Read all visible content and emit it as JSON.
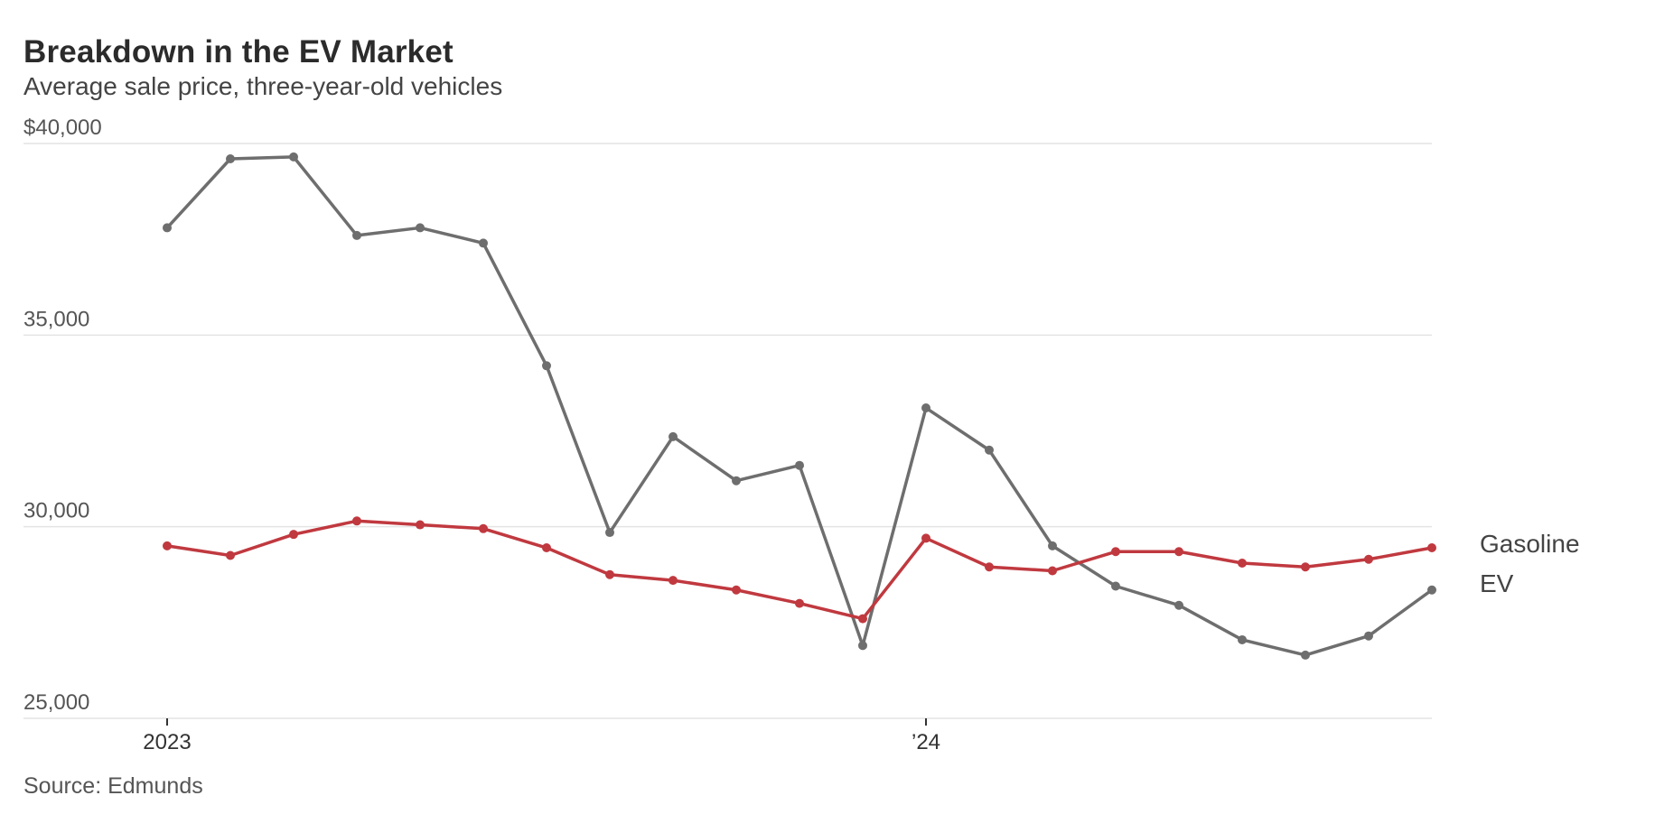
{
  "title": "Breakdown in the EV Market",
  "subtitle": "Average sale price, three-year-old vehicles",
  "source": "Source: Edmunds",
  "chart_data": {
    "type": "line",
    "title": "Breakdown in the EV Market",
    "subtitle": "Average sale price, three-year-old vehicles",
    "xlabel": "",
    "ylabel": "",
    "ylim": [
      25000,
      40000
    ],
    "yticks": [
      25000,
      30000,
      35000,
      40000
    ],
    "ytick_labels": [
      "25,000",
      "30,000",
      "35,000",
      "$40,000"
    ],
    "x": [
      "2023-01",
      "2023-02",
      "2023-03",
      "2023-04",
      "2023-05",
      "2023-06",
      "2023-07",
      "2023-08",
      "2023-09",
      "2023-10",
      "2023-11",
      "2023-12",
      "2024-01",
      "2024-02",
      "2024-03",
      "2024-04",
      "2024-05",
      "2024-06",
      "2024-07",
      "2024-08",
      "2024-09"
    ],
    "xtick_labels": [
      {
        "x": "2023-01",
        "label": "2023"
      },
      {
        "x": "2024-01",
        "label": "’24"
      }
    ],
    "grid": true,
    "legend": "inline labels at right end of lines",
    "series": [
      {
        "name": "Gasoline",
        "color": "#c0393f",
        "values": [
          29500,
          29250,
          29800,
          30150,
          30050,
          29950,
          29450,
          28750,
          28600,
          28350,
          28000,
          27600,
          29700,
          28950,
          28850,
          29350,
          29350,
          29050,
          28950,
          29150,
          29450
        ]
      },
      {
        "name": "EV",
        "color": "#6e6e6e",
        "values": [
          37800,
          39600,
          39650,
          37600,
          37800,
          37400,
          34200,
          29850,
          32350,
          31200,
          31600,
          26900,
          33100,
          32000,
          29500,
          28450,
          27950,
          27050,
          26650,
          27150,
          28350
        ]
      }
    ]
  }
}
